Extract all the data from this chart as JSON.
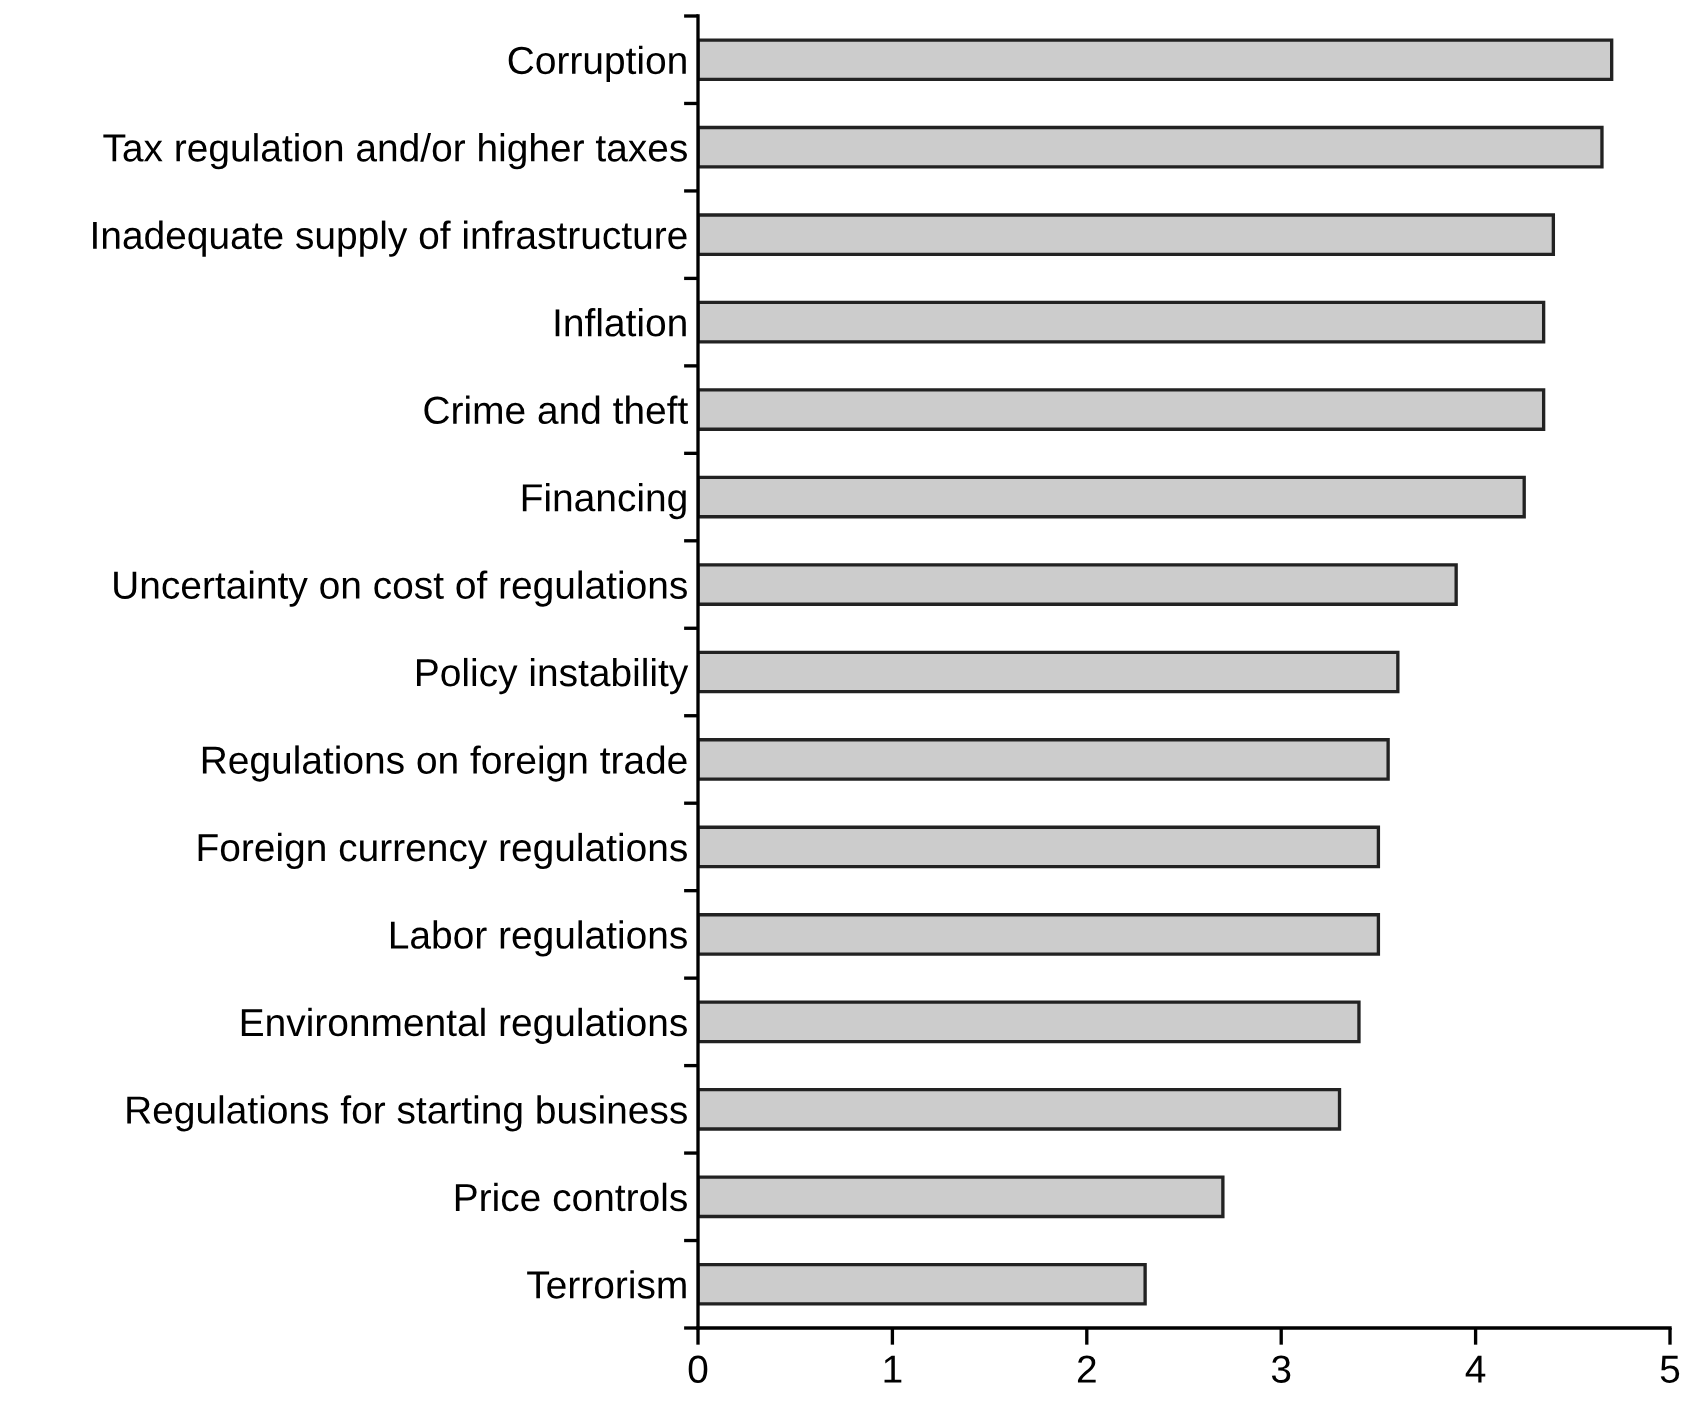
{
  "chart_data": {
    "type": "bar",
    "orientation": "horizontal",
    "categories": [
      "Corruption",
      "Tax regulation and/or higher taxes",
      "Inadequate supply of infrastructure",
      "Inflation",
      "Crime and theft",
      "Financing",
      "Uncertainty on cost of regulations",
      "Policy instability",
      "Regulations on foreign trade",
      "Foreign currency regulations",
      "Labor regulations",
      "Environmental regulations",
      "Regulations for starting business",
      "Price controls",
      "Terrorism"
    ],
    "values": [
      4.7,
      4.65,
      4.4,
      4.35,
      4.35,
      4.25,
      3.9,
      3.6,
      3.55,
      3.5,
      3.5,
      3.4,
      3.3,
      2.7,
      2.3
    ],
    "color": "#cccccc",
    "xlim": [
      0,
      5
    ],
    "xticks": [
      0,
      1,
      2,
      3,
      4,
      5
    ],
    "grid": false,
    "legend": false
  }
}
